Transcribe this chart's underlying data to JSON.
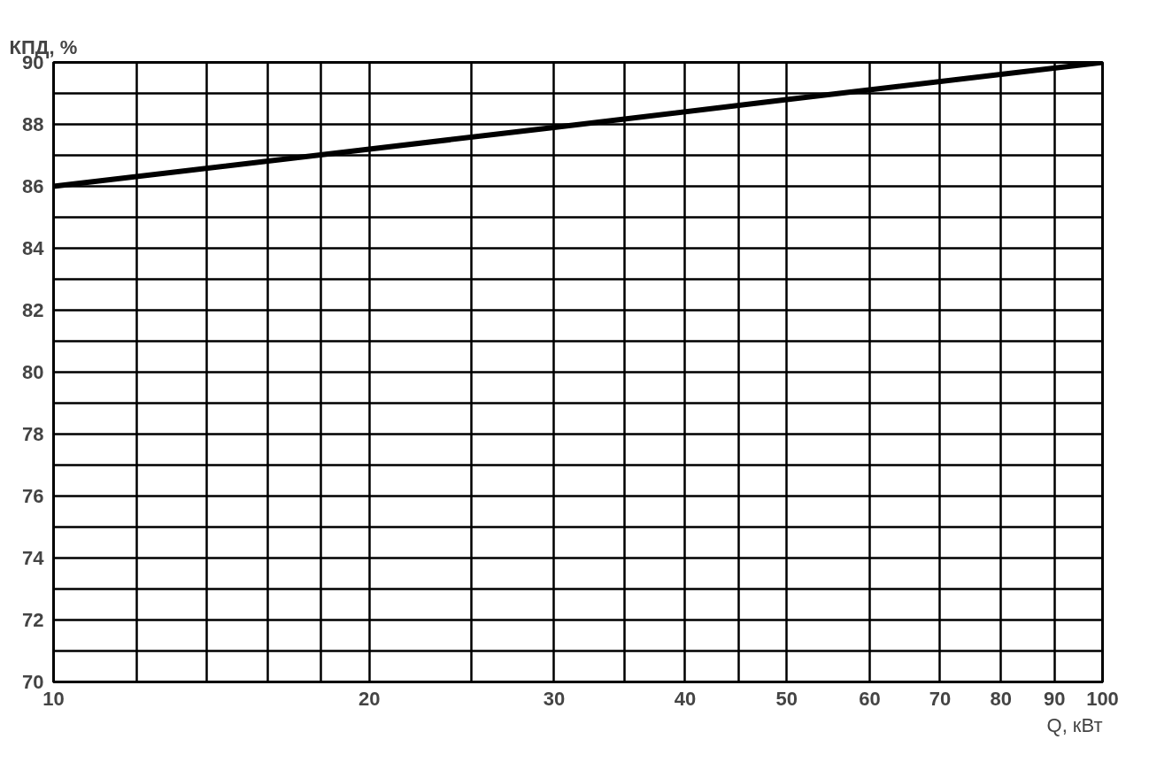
{
  "chart_data": {
    "type": "line",
    "xlabel": "Q, кВт",
    "ylabel": "КПД, %",
    "log": "x",
    "x": [
      10,
      20,
      30,
      50,
      100
    ],
    "series": [
      {
        "color": "#000000",
        "values": [
          86,
          87.2,
          87.9,
          88.8,
          90
        ]
      }
    ],
    "xlim": [
      10,
      100
    ],
    "xticks": [
      10,
      {
        "value": 12,
        "label": null
      },
      {
        "value": 14,
        "label": null
      },
      {
        "value": 16,
        "label": null
      },
      {
        "value": 18,
        "label": null
      },
      20,
      {
        "value": 25,
        "label": null
      },
      30,
      {
        "value": 35,
        "label": null
      },
      40,
      {
        "value": 45,
        "label": null
      },
      50,
      60,
      70,
      80,
      90,
      100
    ],
    "ylim": [
      70,
      90
    ],
    "yticks": [
      70,
      {
        "value": 71,
        "label": null
      },
      72,
      {
        "value": 73,
        "label": null
      },
      74,
      {
        "value": 75,
        "label": null
      },
      76,
      {
        "value": 77,
        "label": null
      },
      78,
      {
        "value": 79,
        "label": null
      },
      80,
      {
        "value": 81,
        "label": null
      },
      82,
      {
        "value": 83,
        "label": null
      },
      84,
      {
        "value": 85,
        "label": null
      },
      86,
      {
        "value": 87,
        "label": null
      },
      88,
      {
        "value": 89,
        "label": null
      },
      90
    ],
    "grid": true,
    "marker": "none",
    "line_style": "solid"
  }
}
